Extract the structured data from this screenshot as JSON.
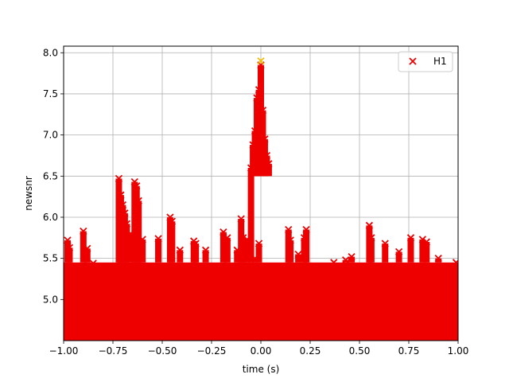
{
  "chart_data": {
    "type": "scatter",
    "xlabel": "time (s)",
    "ylabel": "newsnr",
    "xlim": [
      -1.0,
      1.0
    ],
    "ylim": [
      4.5,
      8.08
    ],
    "grid": true,
    "x_ticks": [
      "−1.00",
      "−0.75",
      "−0.50",
      "−0.25",
      "0.00",
      "0.25",
      "0.50",
      "0.75",
      "1.00"
    ],
    "x_tick_values": [
      -1.0,
      -0.75,
      -0.5,
      -0.25,
      0.0,
      0.25,
      0.5,
      0.75,
      1.0
    ],
    "y_ticks": [
      "5.0",
      "5.5",
      "6.0",
      "6.5",
      "7.0",
      "7.5",
      "8.0"
    ],
    "y_tick_values": [
      5.0,
      5.5,
      6.0,
      6.5,
      7.0,
      7.5,
      8.0
    ],
    "legend": {
      "position": "top-right",
      "entries": [
        {
          "label": "H1",
          "marker": "x",
          "color": "#ee0000"
        }
      ]
    },
    "series": [
      {
        "name": "H1",
        "color": "#ee0000",
        "marker": "x",
        "points": [
          [
            -0.98,
            5.72
          ],
          [
            -0.97,
            5.63
          ],
          [
            -0.9,
            5.83
          ],
          [
            -0.88,
            5.62
          ],
          [
            -0.85,
            5.44
          ],
          [
            -0.72,
            6.47
          ],
          [
            -0.71,
            6.27
          ],
          [
            -0.7,
            6.15
          ],
          [
            -0.69,
            6.05
          ],
          [
            -0.68,
            5.92
          ],
          [
            -0.66,
            5.8
          ],
          [
            -0.64,
            6.43
          ],
          [
            -0.63,
            6.38
          ],
          [
            -0.62,
            6.2
          ],
          [
            -0.6,
            5.73
          ],
          [
            -0.52,
            5.74
          ],
          [
            -0.46,
            6.0
          ],
          [
            -0.45,
            5.95
          ],
          [
            -0.41,
            5.6
          ],
          [
            -0.34,
            5.71
          ],
          [
            -0.33,
            5.68
          ],
          [
            -0.28,
            5.6
          ],
          [
            -0.19,
            5.82
          ],
          [
            -0.17,
            5.75
          ],
          [
            -0.12,
            5.6
          ],
          [
            -0.1,
            5.98
          ],
          [
            -0.09,
            5.75
          ],
          [
            -0.07,
            5.73
          ],
          [
            -0.03,
            5.5
          ],
          [
            -0.01,
            5.68
          ],
          [
            -0.05,
            6.6
          ],
          [
            -0.04,
            6.88
          ],
          [
            -0.03,
            7.05
          ],
          [
            -0.02,
            7.45
          ],
          [
            -0.01,
            7.55
          ],
          [
            0.0,
            7.85
          ],
          [
            0.01,
            7.3
          ],
          [
            0.02,
            6.95
          ],
          [
            0.03,
            6.75
          ],
          [
            0.04,
            6.65
          ],
          [
            0.08,
            5.35
          ],
          [
            0.14,
            5.85
          ],
          [
            0.15,
            5.72
          ],
          [
            0.19,
            5.55
          ],
          [
            0.22,
            5.75
          ],
          [
            0.23,
            5.85
          ],
          [
            0.37,
            5.45
          ],
          [
            0.43,
            5.48
          ],
          [
            0.46,
            5.52
          ],
          [
            0.55,
            5.9
          ],
          [
            0.56,
            5.75
          ],
          [
            0.63,
            5.68
          ],
          [
            0.7,
            5.58
          ],
          [
            0.76,
            5.75
          ],
          [
            0.82,
            5.73
          ],
          [
            0.84,
            5.7
          ],
          [
            0.9,
            5.5
          ],
          [
            0.99,
            5.45
          ]
        ],
        "highlight": {
          "x": 0.0,
          "y": 7.9,
          "color": "#f0c000"
        }
      }
    ]
  }
}
